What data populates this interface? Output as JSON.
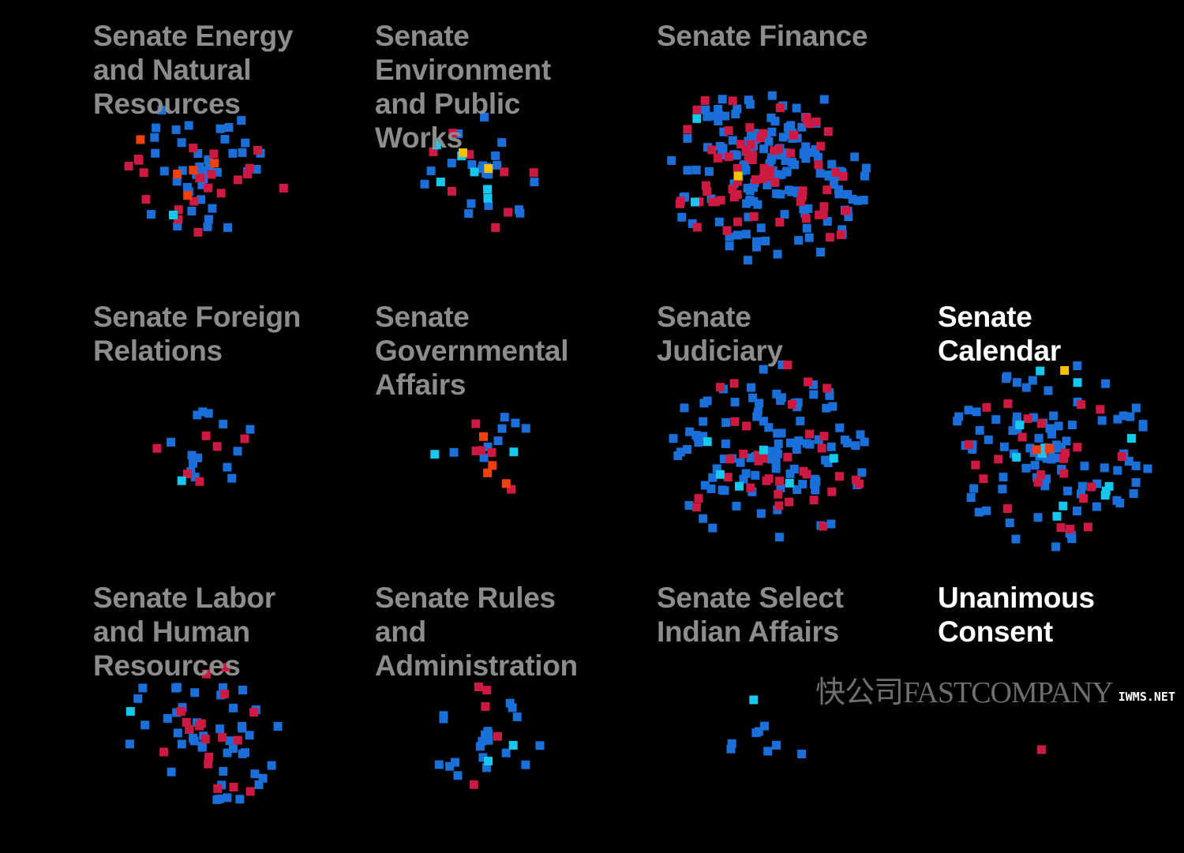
{
  "chart_data": {
    "type": "scatter",
    "colors": {
      "democrat": "#1a6fd8",
      "republican": "#cc1a42",
      "independent": "#16c8ee",
      "other_orange": "#f04010",
      "other_yellow": "#f5c400",
      "title_dim": "#8c8c8c",
      "title_bright": "#ffffff"
    },
    "panels": [
      {
        "title": "Senate Energy\nand Natural\nResources",
        "highlight": false,
        "counts": {
          "democrat": 40,
          "republican": 22,
          "independent": 1,
          "other_orange": 5,
          "other_yellow": 0
        }
      },
      {
        "title": "Senate\nEnvironment\nand Public\nWorks",
        "highlight": false,
        "counts": {
          "democrat": 20,
          "republican": 8,
          "independent": 6,
          "other_orange": 0,
          "other_yellow": 2
        }
      },
      {
        "title": "Senate Finance",
        "highlight": false,
        "counts": {
          "democrat": 160,
          "republican": 70,
          "independent": 2,
          "other_orange": 0,
          "other_yellow": 1
        }
      },
      {
        "title": "Senate Foreign\nRelations",
        "highlight": false,
        "counts": {
          "democrat": 14,
          "republican": 6,
          "independent": 1,
          "other_orange": 0,
          "other_yellow": 0
        }
      },
      {
        "title": "Senate\nGovernmental\nAffairs",
        "highlight": false,
        "counts": {
          "democrat": 8,
          "republican": 5,
          "independent": 2,
          "other_orange": 4,
          "other_yellow": 0
        }
      },
      {
        "title": "Senate\nJudiciary",
        "highlight": false,
        "counts": {
          "democrat": 100,
          "republican": 35,
          "independent": 6,
          "other_orange": 0,
          "other_yellow": 0
        }
      },
      {
        "title": "Senate\nCalendar",
        "highlight": true,
        "counts": {
          "democrat": 95,
          "republican": 25,
          "independent": 12,
          "other_orange": 2,
          "other_yellow": 1
        }
      },
      {
        "title": "Senate Labor\nand Human\nResources",
        "highlight": false,
        "counts": {
          "democrat": 45,
          "republican": 18,
          "independent": 1,
          "other_orange": 0,
          "other_yellow": 0
        }
      },
      {
        "title": "Senate Rules\nand\nAdministration",
        "highlight": false,
        "counts": {
          "democrat": 20,
          "republican": 5,
          "independent": 2,
          "other_orange": 0,
          "other_yellow": 0
        }
      },
      {
        "title": "Senate Select\nIndian Affairs",
        "highlight": false,
        "counts": {
          "democrat": 8,
          "republican": 0,
          "independent": 1,
          "other_orange": 0,
          "other_yellow": 0
        }
      },
      {
        "title": "Unanimous\nConsent",
        "highlight": true,
        "counts": {
          "democrat": 0,
          "republican": 1,
          "independent": 0,
          "other_orange": 0,
          "other_yellow": 0
        }
      }
    ]
  },
  "watermark": {
    "main": "快公司FASTCOMPANY",
    "small": "IWMS.NET"
  }
}
